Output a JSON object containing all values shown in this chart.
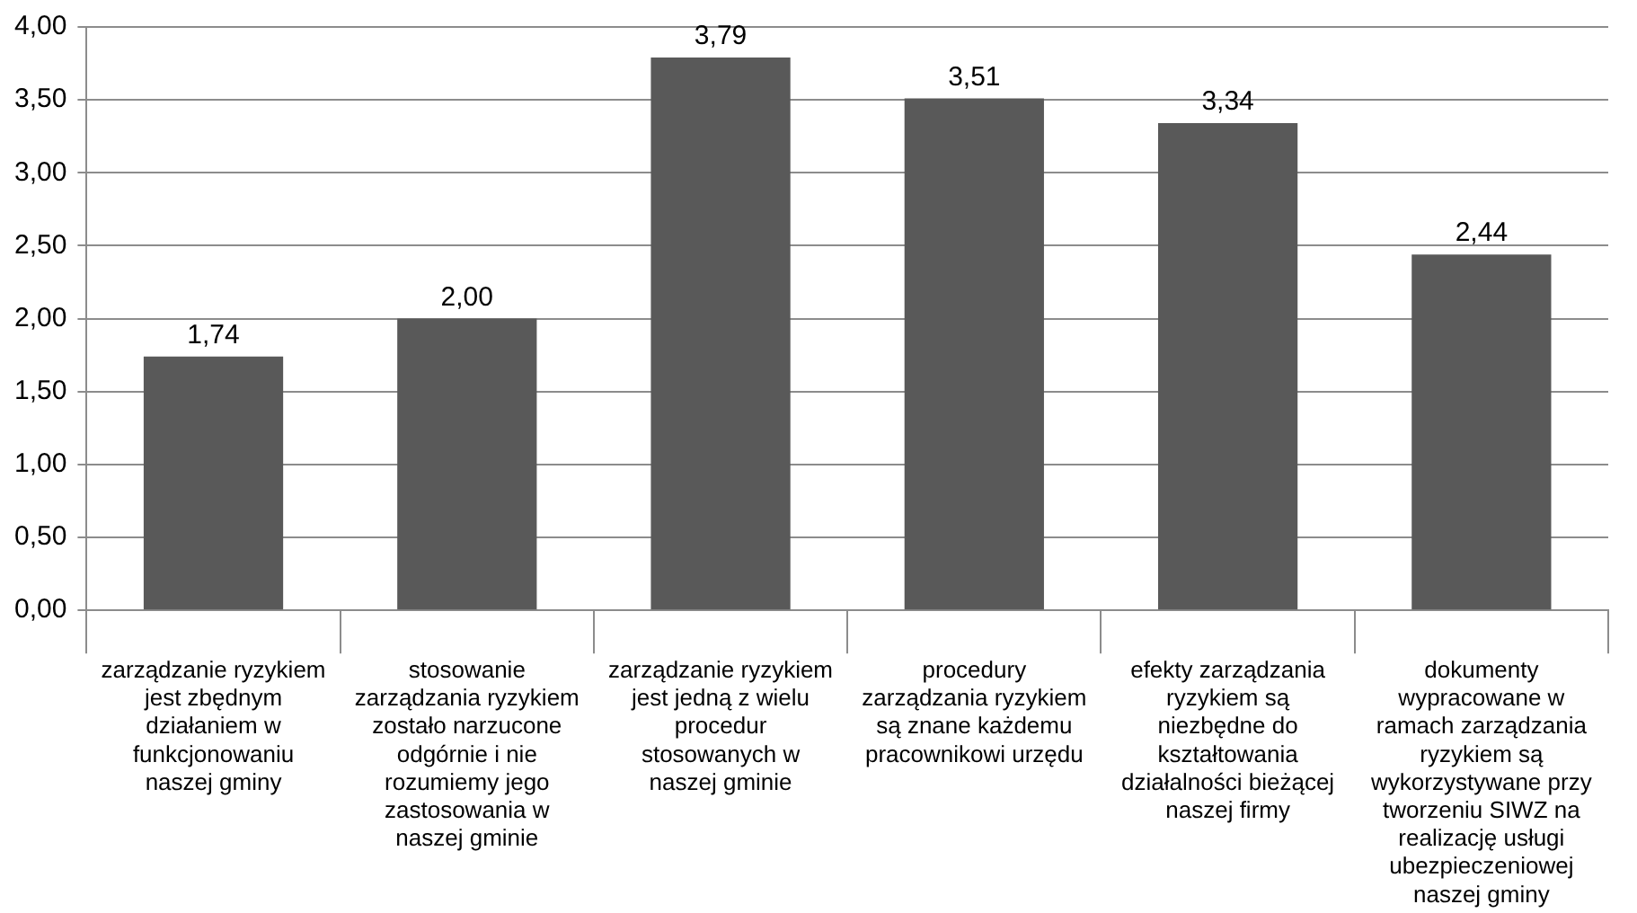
{
  "chart_data": {
    "type": "bar",
    "categories": [
      "zarządzanie ryzykiem jest zbędnym działaniem w funkcjonowaniu naszej gminy",
      "stosowanie zarządzania ryzykiem zostało narzucone odgórnie i nie rozumiemy jego zastosowania w naszej gminie",
      "zarządzanie ryzykiem jest jedną z wielu procedur stosowanych w naszej gminie",
      "procedury zarządzania ryzykiem są znane każdemu pracownikowi urzędu",
      "efekty zarządzania ryzykiem są niezbędne do kształtowania działalności bieżącej naszej firmy",
      "dokumenty wypracowane w ramach zarządzania ryzykiem są wykorzystywane przy tworzeniu SIWZ na realizację usługi ubezpieczeniowej naszej gminy"
    ],
    "values": [
      1.74,
      2.0,
      3.79,
      3.51,
      3.34,
      2.44
    ],
    "value_labels": [
      "1,74",
      "2,00",
      "3,79",
      "3,51",
      "3,34",
      "2,44"
    ],
    "color": "#595959",
    "ylim": [
      0,
      4
    ],
    "yticks": [
      {
        "value": 0,
        "label": "0,00"
      },
      {
        "value": 0.5,
        "label": "0,50"
      },
      {
        "value": 1,
        "label": "1,00"
      },
      {
        "value": 1.5,
        "label": "1,50"
      },
      {
        "value": 2,
        "label": "2,00"
      },
      {
        "value": 2.5,
        "label": "2,50"
      },
      {
        "value": 3,
        "label": "3,00"
      },
      {
        "value": 3.5,
        "label": "3,50"
      },
      {
        "value": 4,
        "label": "4,00"
      }
    ],
    "grid": "y"
  }
}
